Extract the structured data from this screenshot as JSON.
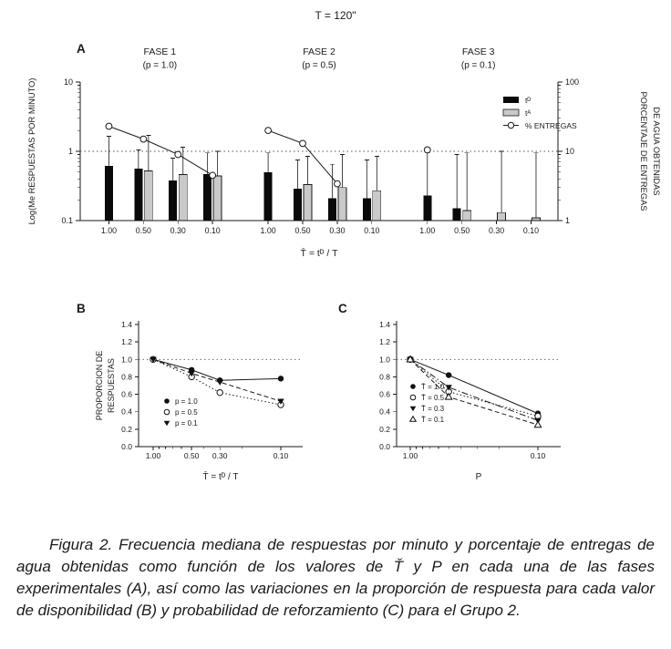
{
  "title": "T = 120\"",
  "caption": "Figura 2. Frecuencia mediana de respuestas por minuto y porcentaje de entregas de agua obtenidas como función de los valores de Ť y P en cada una de las fases experimentales (A), así como las variaciones en la proporción de respuesta para cada valor de disponibilidad (B) y probabilidad de reforzamiento (C) para el Grupo 2.",
  "chart_data": [
    {
      "id": "A",
      "panel_label": "A",
      "type": "bar+line",
      "x_scale": "categorical",
      "y_scale": "log",
      "ylim_left": [
        0.1,
        10
      ],
      "ylim_right": [
        1,
        100
      ],
      "ylabel_left": "Log(Me RESPUESTAS POR MINUTO)",
      "ylabel_right_lines": [
        "PORCENTAJE DE ENTREGAS",
        "DE AGUA OBTENIDAS"
      ],
      "xlabel": "T̄ = tᴰ / T",
      "yticks_left": [
        {
          "v": 10,
          "label": "10"
        },
        {
          "v": 1,
          "label": "1"
        },
        {
          "v": 0.1,
          "label": "0.1"
        }
      ],
      "yticks_right": [
        {
          "v": 10,
          "label": "100"
        },
        {
          "v": 1,
          "label": "10"
        },
        {
          "v": 0.1,
          "label": "1"
        }
      ],
      "reference_line": 1,
      "categories": [
        "1.00",
        "0.50",
        "0.30",
        "0.10"
      ],
      "legend": [
        {
          "label": "tᴰ",
          "swatch": "bar-black"
        },
        {
          "label": "tᴬ",
          "swatch": "bar-gray"
        },
        {
          "label": "% ENTREGAS",
          "swatch": "line-open-circle"
        }
      ],
      "colors": {
        "tD": "#0a0a0a",
        "tA": "#c9c9c9"
      },
      "phases": [
        {
          "name": "FASE 1",
          "subtitle": "(p = 1.0)",
          "tD": [
            0.62,
            0.56,
            0.38,
            0.47
          ],
          "tD_err_hi": [
            1.65,
            1.05,
            0.8,
            0.95
          ],
          "tA": [
            null,
            0.52,
            0.46,
            0.44
          ],
          "tA_err_hi": [
            null,
            1.7,
            1.15,
            1.0
          ],
          "pct_entregas": [
            23,
            15,
            9,
            4.5
          ]
        },
        {
          "name": "FASE 2",
          "subtitle": "(p = 0.5)",
          "tD": [
            0.5,
            0.29,
            0.21,
            0.21
          ],
          "tD_err_hi": [
            0.95,
            0.75,
            0.65,
            0.75
          ],
          "tA": [
            null,
            0.33,
            0.3,
            0.27
          ],
          "tA_err_hi": [
            null,
            0.85,
            0.9,
            0.85
          ],
          "pct_entregas": [
            20,
            13,
            3.4,
            null
          ]
        },
        {
          "name": "FASE 3",
          "subtitle": "(p = 0.1)",
          "tD": [
            0.23,
            0.15,
            null,
            null
          ],
          "tD_err_hi": [
            0.95,
            0.9,
            null,
            null
          ],
          "tA": [
            null,
            0.14,
            0.13,
            0.11
          ],
          "tA_err_hi": [
            null,
            0.95,
            1.0,
            0.95
          ],
          "pct_entregas": [
            10.5,
            null,
            null,
            null
          ]
        }
      ]
    },
    {
      "id": "B",
      "panel_label": "B",
      "type": "line",
      "x_scale": "log-reversed",
      "ylim": [
        0,
        1.4
      ],
      "ylabel_lines": [
        "PROPORCION DE",
        "RESPUESTAS"
      ],
      "xlabel": "T̄ = tᴰ / T",
      "yticks": [
        {
          "v": 0,
          "label": "0.0"
        },
        {
          "v": 0.2,
          "label": "0.2"
        },
        {
          "v": 0.4,
          "label": "0.4"
        },
        {
          "v": 0.6,
          "label": "0.6"
        },
        {
          "v": 0.8,
          "label": "0.8"
        },
        {
          "v": 1.0,
          "label": "1.0"
        },
        {
          "v": 1.2,
          "label": "1.2"
        },
        {
          "v": 1.4,
          "label": "1.4"
        }
      ],
      "xticks": [
        {
          "v": 1.0,
          "label": "1.00"
        },
        {
          "v": 0.5,
          "label": "0.50"
        },
        {
          "v": 0.3,
          "label": "0.30"
        },
        {
          "v": 0.1,
          "label": "0.10"
        }
      ],
      "reference_line": 1.0,
      "x": [
        1.0,
        0.5,
        0.3,
        0.1
      ],
      "series": [
        {
          "name": "p = 1.0",
          "marker": "circle-filled",
          "line": "solid",
          "values": [
            1.0,
            0.88,
            0.76,
            0.78
          ]
        },
        {
          "name": "p = 0.5",
          "marker": "circle-open",
          "line": "dotted",
          "values": [
            1.0,
            0.8,
            0.62,
            0.48
          ]
        },
        {
          "name": "p = 0.1",
          "marker": "triangle-down-filled",
          "line": "dashed",
          "values": [
            1.0,
            0.84,
            0.74,
            0.52
          ]
        }
      ]
    },
    {
      "id": "C",
      "panel_label": "C",
      "type": "line",
      "x_scale": "log-reversed",
      "ylim": [
        0,
        1.4
      ],
      "xlabel": "P",
      "yticks": [
        {
          "v": 0,
          "label": "0.0"
        },
        {
          "v": 0.2,
          "label": "0.2"
        },
        {
          "v": 0.4,
          "label": "0.4"
        },
        {
          "v": 0.6,
          "label": "0.6"
        },
        {
          "v": 0.8,
          "label": "0.8"
        },
        {
          "v": 1.0,
          "label": "1.0"
        },
        {
          "v": 1.2,
          "label": "1.2"
        },
        {
          "v": 1.4,
          "label": "1.4"
        }
      ],
      "xticks": [
        {
          "v": 1.0,
          "label": "1.00"
        },
        {
          "v": 0.1,
          "label": "0.10"
        }
      ],
      "reference_line": 1.0,
      "x": [
        1.0,
        0.5,
        0.1
      ],
      "series": [
        {
          "name": "T̄ = 1.0",
          "marker": "circle-filled",
          "line": "solid",
          "values": [
            1.0,
            0.82,
            0.38
          ]
        },
        {
          "name": "T̄ = 0.5",
          "marker": "circle-open",
          "line": "dotted",
          "values": [
            1.0,
            0.63,
            0.35
          ]
        },
        {
          "name": "T̄ = 0.3",
          "marker": "triangle-down-filled",
          "line": "dashdot",
          "values": [
            1.0,
            0.68,
            0.3
          ]
        },
        {
          "name": "T̄ = 0.1",
          "marker": "triangle-up-open",
          "line": "dashed",
          "values": [
            1.0,
            0.57,
            0.25
          ]
        }
      ]
    }
  ]
}
